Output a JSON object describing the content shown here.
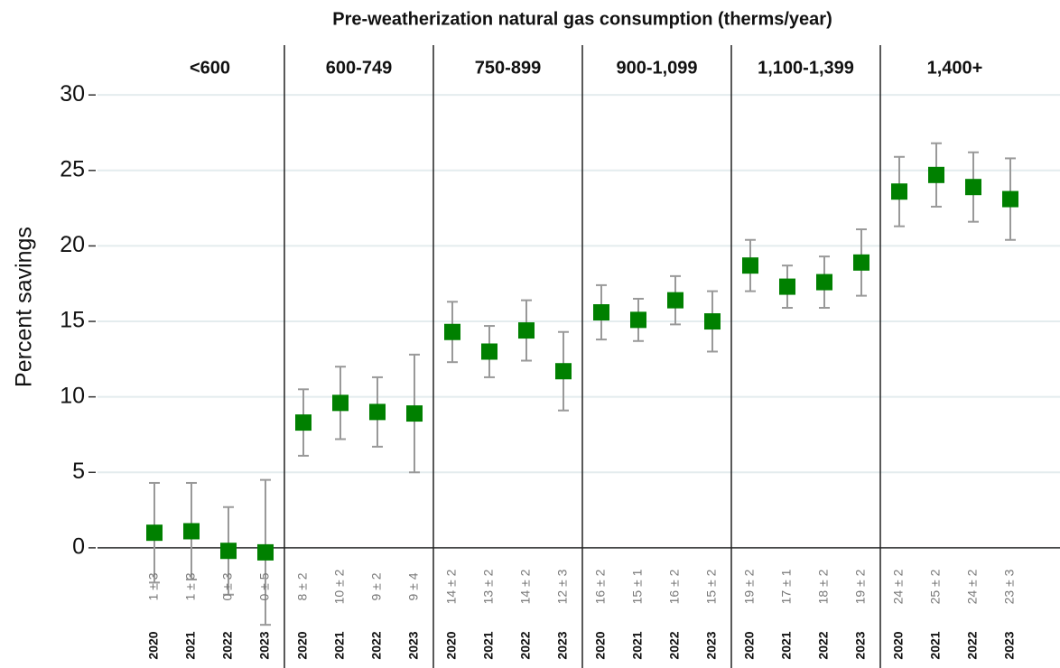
{
  "chart_data": {
    "type": "errorbar",
    "title": "Pre-weatherization natural gas consumption (therms/year)",
    "y_label": "Percent savings",
    "ylim": [
      -7.9,
      33.3
    ],
    "yticks": [
      0,
      5,
      10,
      15,
      20,
      25,
      30
    ],
    "grid": true,
    "color": "#008000",
    "error_color": "#999999",
    "groups": [
      {
        "name": "<600",
        "categories": [
          "2020",
          "2021",
          "2022",
          "2023"
        ],
        "values": [
          1.0,
          1.1,
          -0.2,
          -0.3
        ],
        "errors": [
          3.3,
          3.2,
          2.9,
          4.8
        ],
        "value_labels": [
          "1 ± 3",
          "1 ± 3",
          "0 ± 3",
          "0 ± 5"
        ]
      },
      {
        "name": "600-749",
        "categories": [
          "2020",
          "2021",
          "2022",
          "2023"
        ],
        "values": [
          8.3,
          9.6,
          9.0,
          8.9
        ],
        "errors": [
          2.2,
          2.4,
          2.3,
          3.9
        ],
        "value_labels": [
          "8 ± 2",
          "10 ± 2",
          "9 ± 2",
          "9 ± 4"
        ]
      },
      {
        "name": "750-899",
        "categories": [
          "2020",
          "2021",
          "2022",
          "2023"
        ],
        "values": [
          14.3,
          13.0,
          14.4,
          11.7
        ],
        "errors": [
          2.0,
          1.7,
          2.0,
          2.6
        ],
        "value_labels": [
          "14 ± 2",
          "13 ± 2",
          "14 ± 2",
          "12 ± 3"
        ]
      },
      {
        "name": "900-1,099",
        "categories": [
          "2020",
          "2021",
          "2022",
          "2023"
        ],
        "values": [
          15.6,
          15.1,
          16.4,
          15.0
        ],
        "errors": [
          1.8,
          1.4,
          1.6,
          2.0
        ],
        "value_labels": [
          "16 ± 2",
          "15 ± 1",
          "16 ± 2",
          "15 ± 2"
        ]
      },
      {
        "name": "1,100-1,399",
        "categories": [
          "2020",
          "2021",
          "2022",
          "2023"
        ],
        "values": [
          18.7,
          17.3,
          17.6,
          18.9
        ],
        "errors": [
          1.7,
          1.4,
          1.7,
          2.2
        ],
        "value_labels": [
          "19 ± 2",
          "17 ± 1",
          "18 ± 2",
          "19 ± 2"
        ]
      },
      {
        "name": "1,400+",
        "categories": [
          "2020",
          "2021",
          "2022",
          "2023"
        ],
        "values": [
          23.6,
          24.7,
          23.9,
          23.1
        ],
        "errors": [
          2.3,
          2.1,
          2.3,
          2.7
        ],
        "value_labels": [
          "24 ± 2",
          "25 ± 2",
          "24 ± 2",
          "23 ± 3"
        ]
      }
    ]
  }
}
